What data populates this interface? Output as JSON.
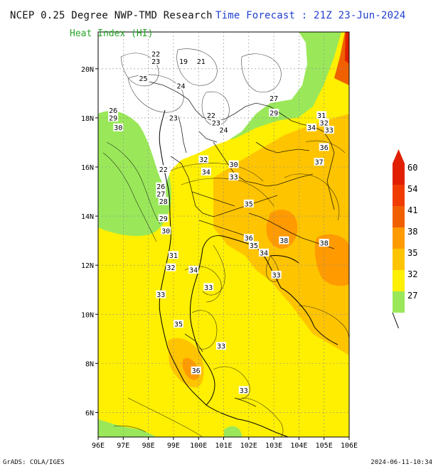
{
  "header": {
    "title_left": "NCEP 0.25 Degree NWP-TMD Research",
    "title_right": "Time Forecast : 21Z 23-Jun-2024",
    "subtitle": "Heat Index (HI)"
  },
  "footer": {
    "left": "GrADS: COLA/IGES",
    "right": "2024-06-11-10:34"
  },
  "map": {
    "lon_ticks": [
      "96E",
      "97E",
      "98E",
      "99E",
      "100E",
      "101E",
      "102E",
      "103E",
      "104E",
      "105E",
      "106E"
    ],
    "lat_ticks": [
      "20N",
      "18N",
      "16N",
      "14N",
      "12N",
      "10N",
      "8N",
      "6N"
    ],
    "lon_range": [
      96,
      106
    ],
    "lat_range": [
      5,
      21.5
    ],
    "grid": "dotted",
    "contour_labels": [
      {
        "t": "22",
        "lon": 98.3,
        "lat": 20.6
      },
      {
        "t": "23",
        "lon": 98.3,
        "lat": 20.3
      },
      {
        "t": "19",
        "lon": 99.4,
        "lat": 20.3
      },
      {
        "t": "21",
        "lon": 100.1,
        "lat": 20.3
      },
      {
        "t": "25",
        "lon": 97.8,
        "lat": 19.6
      },
      {
        "t": "24",
        "lon": 99.3,
        "lat": 19.3
      },
      {
        "t": "26",
        "lon": 96.6,
        "lat": 18.3
      },
      {
        "t": "29",
        "lon": 96.6,
        "lat": 18.0
      },
      {
        "t": "30",
        "lon": 96.8,
        "lat": 17.6
      },
      {
        "t": "23",
        "lon": 99.0,
        "lat": 18.0
      },
      {
        "t": "22",
        "lon": 100.5,
        "lat": 18.1
      },
      {
        "t": "23",
        "lon": 100.7,
        "lat": 17.8
      },
      {
        "t": "24",
        "lon": 101.0,
        "lat": 17.5
      },
      {
        "t": "27",
        "lon": 103.0,
        "lat": 18.8
      },
      {
        "t": "29",
        "lon": 103.0,
        "lat": 18.2
      },
      {
        "t": "31",
        "lon": 104.9,
        "lat": 18.1
      },
      {
        "t": "34",
        "lon": 104.5,
        "lat": 17.6
      },
      {
        "t": "32",
        "lon": 105.0,
        "lat": 17.8
      },
      {
        "t": "33",
        "lon": 105.2,
        "lat": 17.5
      },
      {
        "t": "36",
        "lon": 105.0,
        "lat": 16.8
      },
      {
        "t": "37",
        "lon": 104.8,
        "lat": 16.2
      },
      {
        "t": "30",
        "lon": 101.4,
        "lat": 16.1
      },
      {
        "t": "32",
        "lon": 100.2,
        "lat": 16.3
      },
      {
        "t": "34",
        "lon": 100.3,
        "lat": 15.8
      },
      {
        "t": "33",
        "lon": 101.4,
        "lat": 15.6
      },
      {
        "t": "22",
        "lon": 98.6,
        "lat": 15.9
      },
      {
        "t": "26",
        "lon": 98.5,
        "lat": 15.2
      },
      {
        "t": "27",
        "lon": 98.5,
        "lat": 14.9
      },
      {
        "t": "28",
        "lon": 98.6,
        "lat": 14.6
      },
      {
        "t": "29",
        "lon": 98.6,
        "lat": 13.9
      },
      {
        "t": "30",
        "lon": 98.7,
        "lat": 13.4
      },
      {
        "t": "31",
        "lon": 99.0,
        "lat": 12.4
      },
      {
        "t": "32",
        "lon": 98.9,
        "lat": 11.9
      },
      {
        "t": "34",
        "lon": 99.8,
        "lat": 11.8
      },
      {
        "t": "35",
        "lon": 102.0,
        "lat": 14.5
      },
      {
        "t": "36",
        "lon": 102.0,
        "lat": 13.1
      },
      {
        "t": "35",
        "lon": 102.2,
        "lat": 12.8
      },
      {
        "t": "34",
        "lon": 102.6,
        "lat": 12.5
      },
      {
        "t": "38",
        "lon": 103.4,
        "lat": 13.0
      },
      {
        "t": "38",
        "lon": 105.0,
        "lat": 12.9
      },
      {
        "t": "33",
        "lon": 100.4,
        "lat": 11.1
      },
      {
        "t": "33",
        "lon": 98.5,
        "lat": 10.8
      },
      {
        "t": "33",
        "lon": 103.1,
        "lat": 11.6
      },
      {
        "t": "35",
        "lon": 99.2,
        "lat": 9.6
      },
      {
        "t": "33",
        "lon": 100.9,
        "lat": 8.7
      },
      {
        "t": "36",
        "lon": 99.9,
        "lat": 7.7
      },
      {
        "t": "33",
        "lon": 101.8,
        "lat": 6.9
      }
    ]
  },
  "colorbar": {
    "labels": [
      "60",
      "54",
      "41",
      "38",
      "35",
      "32",
      "27"
    ],
    "colors": [
      "#e02000",
      "#f03c00",
      "#f06000",
      "#ff9a00",
      "#ffc400",
      "#ffef00",
      "#9ae85a"
    ]
  },
  "chart_data": {
    "type": "heatmap",
    "title": "Heat Index (HI)",
    "xlabel": "",
    "ylabel": "",
    "x_ticks": [
      "96E",
      "97E",
      "98E",
      "99E",
      "100E",
      "101E",
      "102E",
      "103E",
      "104E",
      "105E",
      "106E"
    ],
    "y_ticks": [
      "20N",
      "18N",
      "16N",
      "14N",
      "12N",
      "10N",
      "8N",
      "6N"
    ],
    "levels": [
      27,
      32,
      35,
      38,
      41,
      54,
      60
    ]
  }
}
